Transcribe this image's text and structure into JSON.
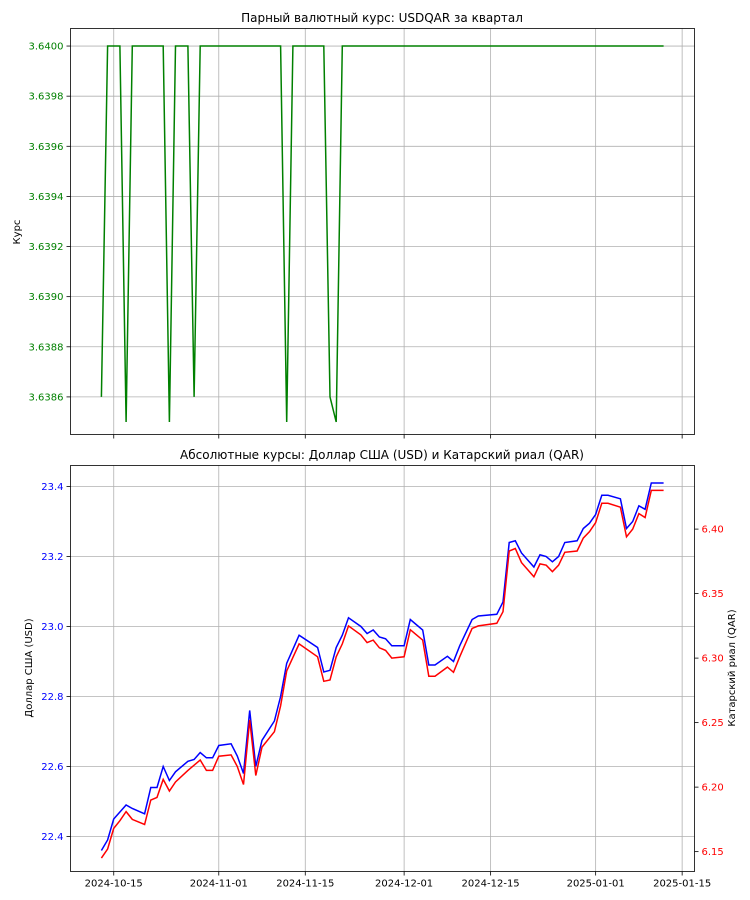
{
  "charts": [
    {
      "title": "Парный валютный курс: USDQAR за квартал",
      "ylabel": "Курс",
      "ylabel_color": "#008000",
      "tick_color": "#008000",
      "line_color": "#008000",
      "yticks": [
        "3.6386",
        "3.6388",
        "3.6390",
        "3.6392",
        "3.6394",
        "3.6396",
        "3.6398",
        "3.6400"
      ]
    },
    {
      "title": "Абсолютные курсы: Доллар США (USD) и Катарский риал (QAR)",
      "ylabel_left": "Доллар США (USD)",
      "ylabel_right": "Катарский риал (QAR)",
      "left_color": "#0000ff",
      "right_color": "#ff0000",
      "yticks_left": [
        "22.4",
        "22.6",
        "22.8",
        "23.0",
        "23.2",
        "23.4"
      ],
      "yticks_right": [
        "6.15",
        "6.20",
        "6.25",
        "6.30",
        "6.35",
        "6.40"
      ],
      "xticks": [
        "2024-10-15",
        "2024-11-01",
        "2024-11-15",
        "2024-12-01",
        "2024-12-15",
        "2025-01-01",
        "2025-01-15"
      ]
    }
  ],
  "chart_data": [
    {
      "type": "line",
      "title": "Парный валютный курс: USDQAR за квартал",
      "ylabel": "Курс",
      "ylim": [
        3.63845,
        3.64007
      ],
      "xlim": [
        "2024-10-08",
        "2025-01-17"
      ],
      "grid": true,
      "series": [
        {
          "points": [
            [
              "2024-10-13",
              3.6386
            ],
            [
              "2024-10-14",
              3.64
            ],
            [
              "2024-10-16",
              3.64
            ],
            [
              "2024-10-17",
              3.6385
            ],
            [
              "2024-10-18",
              3.64
            ],
            [
              "2024-10-23",
              3.64
            ],
            [
              "2024-10-24",
              3.6385
            ],
            [
              "2024-10-25",
              3.64
            ],
            [
              "2024-10-27",
              3.64
            ],
            [
              "2024-10-28",
              3.6386
            ],
            [
              "2024-10-29",
              3.64
            ],
            [
              "2024-11-11",
              3.64
            ],
            [
              "2024-11-12",
              3.6385
            ],
            [
              "2024-11-13",
              3.64
            ],
            [
              "2024-11-18",
              3.64
            ],
            [
              "2024-11-19",
              3.6386
            ],
            [
              "2024-11-20",
              3.6385
            ],
            [
              "2024-11-21",
              3.64
            ],
            [
              "2025-01-12",
              3.64
            ]
          ]
        }
      ]
    },
    {
      "type": "line",
      "title": "Абсолютные курсы: Доллар США (USD) и Катарский риал (QAR)",
      "xlabel": "",
      "ylabel_left": "Доллар США (USD)",
      "ylabel_right": "Катарский риал (QAR)",
      "ylim_left": [
        22.3,
        23.46
      ],
      "ylim_right": [
        6.1346,
        6.4493
      ],
      "xlim": [
        "2024-10-08",
        "2025-01-17"
      ],
      "grid": true,
      "series": [
        {
          "name": "Доллар США (USD)",
          "axis": "left",
          "points": [
            [
              "2024-10-13",
              22.36
            ],
            [
              "2024-10-14",
              22.39
            ],
            [
              "2024-10-15",
              22.45
            ],
            [
              "2024-10-16",
              22.47
            ],
            [
              "2024-10-17",
              22.49
            ],
            [
              "2024-10-18",
              22.48
            ],
            [
              "2024-10-20",
              22.465
            ],
            [
              "2024-10-21",
              22.54
            ],
            [
              "2024-10-22",
              22.54
            ],
            [
              "2024-10-23",
              22.6
            ],
            [
              "2024-10-24",
              22.56
            ],
            [
              "2024-10-25",
              22.585
            ],
            [
              "2024-10-27",
              22.615
            ],
            [
              "2024-10-28",
              22.62
            ],
            [
              "2024-10-29",
              22.64
            ],
            [
              "2024-10-30",
              22.625
            ],
            [
              "2024-10-31",
              22.625
            ],
            [
              "2024-11-01",
              22.66
            ],
            [
              "2024-11-03",
              22.665
            ],
            [
              "2024-11-04",
              22.63
            ],
            [
              "2024-11-05",
              22.58
            ],
            [
              "2024-11-06",
              22.76
            ],
            [
              "2024-11-07",
              22.6
            ],
            [
              "2024-11-08",
              22.675
            ],
            [
              "2024-11-10",
              22.73
            ],
            [
              "2024-11-11",
              22.8
            ],
            [
              "2024-11-12",
              22.895
            ],
            [
              "2024-11-14",
              22.975
            ],
            [
              "2024-11-17",
              22.94
            ],
            [
              "2024-11-18",
              22.87
            ],
            [
              "2024-11-19",
              22.875
            ],
            [
              "2024-11-20",
              22.94
            ],
            [
              "2024-11-21",
              22.975
            ],
            [
              "2024-11-22",
              23.025
            ],
            [
              "2024-11-24",
              23.0
            ],
            [
              "2024-11-25",
              22.98
            ],
            [
              "2024-11-26",
              22.99
            ],
            [
              "2024-11-27",
              22.97
            ],
            [
              "2024-11-28",
              22.965
            ],
            [
              "2024-11-29",
              22.945
            ],
            [
              "2024-12-01",
              22.945
            ],
            [
              "2024-12-02",
              23.02
            ],
            [
              "2024-12-04",
              22.99
            ],
            [
              "2024-12-05",
              22.89
            ],
            [
              "2024-12-06",
              22.89
            ],
            [
              "2024-12-08",
              22.915
            ],
            [
              "2024-12-09",
              22.9
            ],
            [
              "2024-12-10",
              22.945
            ],
            [
              "2024-12-12",
              23.02
            ],
            [
              "2024-12-13",
              23.03
            ],
            [
              "2024-12-16",
              23.035
            ],
            [
              "2024-12-17",
              23.07
            ],
            [
              "2024-12-18",
              23.24
            ],
            [
              "2024-12-19",
              23.245
            ],
            [
              "2024-12-20",
              23.21
            ],
            [
              "2024-12-22",
              23.17
            ],
            [
              "2024-12-23",
              23.205
            ],
            [
              "2024-12-24",
              23.2
            ],
            [
              "2024-12-25",
              23.185
            ],
            [
              "2024-12-26",
              23.2
            ],
            [
              "2024-12-27",
              23.24
            ],
            [
              "2024-12-29",
              23.245
            ],
            [
              "2024-12-30",
              23.28
            ],
            [
              "2024-12-31",
              23.295
            ],
            [
              "2025-01-01",
              23.32
            ],
            [
              "2025-01-02",
              23.375
            ],
            [
              "2025-01-03",
              23.375
            ],
            [
              "2025-01-05",
              23.365
            ],
            [
              "2025-01-06",
              23.28
            ],
            [
              "2025-01-07",
              23.3
            ],
            [
              "2025-01-08",
              23.345
            ],
            [
              "2025-01-09",
              23.335
            ],
            [
              "2025-01-10",
              23.41
            ],
            [
              "2025-01-12",
              23.41
            ]
          ]
        },
        {
          "name": "Катарский риал (QAR)",
          "axis": "right",
          "points": [
            [
              "2024-10-13",
              6.145
            ],
            [
              "2024-10-14",
              6.152
            ],
            [
              "2024-10-15",
              6.168
            ],
            [
              "2024-10-16",
              6.174
            ],
            [
              "2024-10-17",
              6.181
            ],
            [
              "2024-10-18",
              6.175
            ],
            [
              "2024-10-20",
              6.171
            ],
            [
              "2024-10-21",
              6.19
            ],
            [
              "2024-10-22",
              6.192
            ],
            [
              "2024-10-23",
              6.206
            ],
            [
              "2024-10-24",
              6.197
            ],
            [
              "2024-10-25",
              6.204
            ],
            [
              "2024-10-27",
              6.213
            ],
            [
              "2024-10-28",
              6.217
            ],
            [
              "2024-10-29",
              6.221
            ],
            [
              "2024-10-30",
              6.213
            ],
            [
              "2024-10-31",
              6.213
            ],
            [
              "2024-11-01",
              6.224
            ],
            [
              "2024-11-03",
              6.225
            ],
            [
              "2024-11-04",
              6.216
            ],
            [
              "2024-11-05",
              6.202
            ],
            [
              "2024-11-06",
              6.252
            ],
            [
              "2024-11-07",
              6.209
            ],
            [
              "2024-11-08",
              6.231
            ],
            [
              "2024-11-10",
              6.243
            ],
            [
              "2024-11-11",
              6.263
            ],
            [
              "2024-11-12",
              6.29
            ],
            [
              "2024-11-14",
              6.311
            ],
            [
              "2024-11-17",
              6.301
            ],
            [
              "2024-11-18",
              6.282
            ],
            [
              "2024-11-19",
              6.283
            ],
            [
              "2024-11-20",
              6.301
            ],
            [
              "2024-11-21",
              6.311
            ],
            [
              "2024-11-22",
              6.325
            ],
            [
              "2024-11-24",
              6.318
            ],
            [
              "2024-11-25",
              6.312
            ],
            [
              "2024-11-26",
              6.314
            ],
            [
              "2024-11-27",
              6.308
            ],
            [
              "2024-11-28",
              6.306
            ],
            [
              "2024-11-29",
              6.3
            ],
            [
              "2024-12-01",
              6.301
            ],
            [
              "2024-12-02",
              6.322
            ],
            [
              "2024-12-04",
              6.314
            ],
            [
              "2024-12-05",
              6.286
            ],
            [
              "2024-12-06",
              6.286
            ],
            [
              "2024-12-08",
              6.293
            ],
            [
              "2024-12-09",
              6.289
            ],
            [
              "2024-12-10",
              6.301
            ],
            [
              "2024-12-12",
              6.323
            ],
            [
              "2024-12-13",
              6.325
            ],
            [
              "2024-12-16",
              6.327
            ],
            [
              "2024-12-17",
              6.336
            ],
            [
              "2024-12-18",
              6.383
            ],
            [
              "2024-12-19",
              6.385
            ],
            [
              "2024-12-20",
              6.374
            ],
            [
              "2024-12-22",
              6.363
            ],
            [
              "2024-12-23",
              6.373
            ],
            [
              "2024-12-24",
              6.372
            ],
            [
              "2024-12-25",
              6.367
            ],
            [
              "2024-12-26",
              6.372
            ],
            [
              "2024-12-27",
              6.382
            ],
            [
              "2024-12-29",
              6.383
            ],
            [
              "2024-12-30",
              6.393
            ],
            [
              "2024-12-31",
              6.398
            ],
            [
              "2025-01-01",
              6.405
            ],
            [
              "2025-01-02",
              6.42
            ],
            [
              "2025-01-03",
              6.42
            ],
            [
              "2025-01-05",
              6.417
            ],
            [
              "2025-01-06",
              6.394
            ],
            [
              "2025-01-07",
              6.4
            ],
            [
              "2025-01-08",
              6.412
            ],
            [
              "2025-01-09",
              6.409
            ],
            [
              "2025-01-10",
              6.43
            ],
            [
              "2025-01-12",
              6.43
            ]
          ]
        }
      ]
    }
  ]
}
